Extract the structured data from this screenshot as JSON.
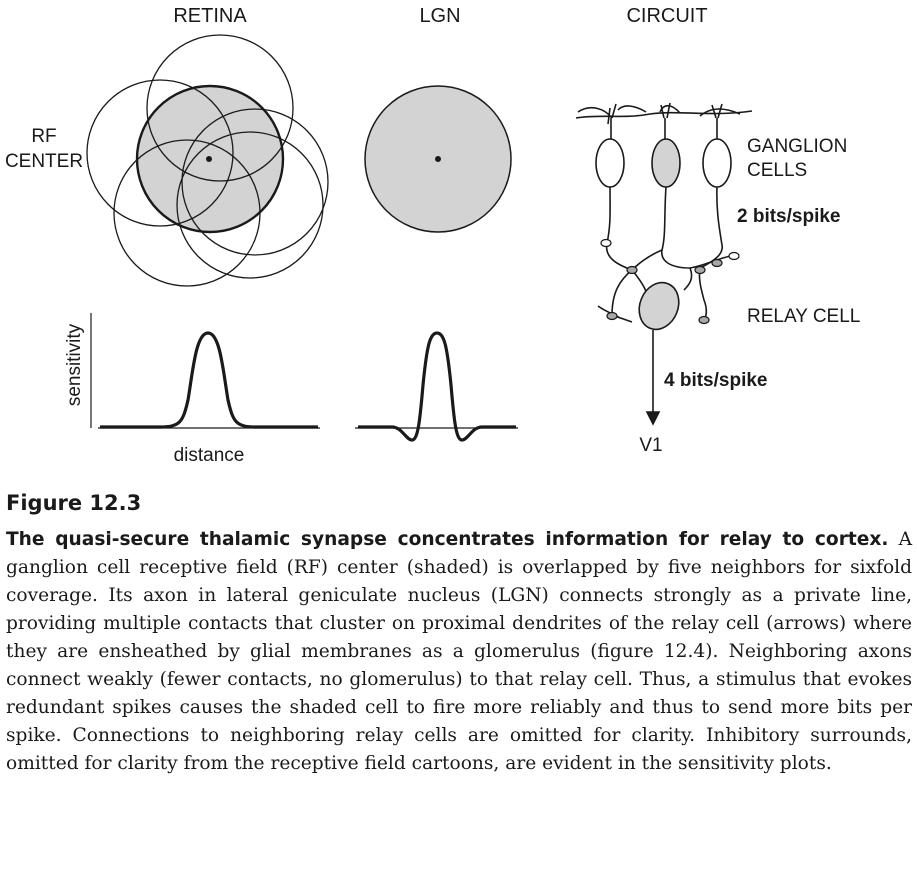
{
  "figure": {
    "panels": {
      "retina": "RETINA",
      "lgn": "LGN",
      "circuit": "CIRCUIT"
    },
    "rf_center_label": [
      "RF",
      "CENTER"
    ],
    "ganglion_label": [
      "GANGLION",
      "CELLS"
    ],
    "ganglion_rate": "2 bits/spike",
    "relay_label": "RELAY CELL",
    "relay_rate": "4 bits/spike",
    "target_label": "V1",
    "y_axis_label": "sensitivity",
    "x_axis_label": "distance",
    "colors": {
      "shade": "#d3d3d3",
      "ink": "#1a1a1a"
    }
  },
  "caption": {
    "figure_label": "Figure 12.3",
    "title": "The quasi-secure thalamic synapse concentrates information for relay to cortex.",
    "body": "A ganglion cell receptive field (RF) center (shaded) is overlapped by five neighbors for sixfold coverage. Its axon in lateral geniculate nucleus (LGN) connects strongly as a private line, providing multiple contacts that cluster on proximal dendrites of the relay cell (arrows) where they are ensheathed by glial membranes as a glomerulus (figure 12.4). Neighboring axons connect weakly (fewer contacts, no glomerulus) to that relay cell. Thus, a stimulus that evokes redundant spikes causes the shaded cell to fire more reliably and thus to send more bits per spike. Connections to neighbor­ing relay cells are omitted for clarity. Inhibitory surrounds, omitted for clarity from the receptive field cartoons, are evident in the sensitivity plots."
  }
}
